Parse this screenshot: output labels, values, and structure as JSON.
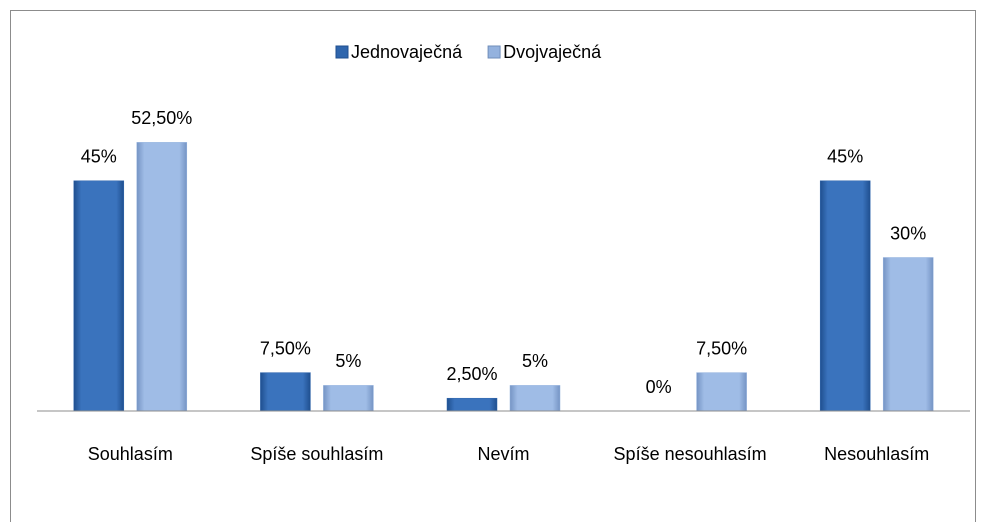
{
  "chart_data": {
    "type": "bar",
    "categories": [
      "Souhlasím",
      "Spíše souhlasím",
      "Nevím",
      "Spíše nesouhlasím",
      "Nesouhlasím"
    ],
    "series": [
      {
        "name": "Jednovaječná",
        "color": "#2f66ad",
        "values": [
          45,
          7.5,
          2.5,
          0,
          45
        ],
        "value_labels": [
          "45%",
          "7,50%",
          "2,50%",
          "0%",
          "45%"
        ]
      },
      {
        "name": "Dvojvaječná",
        "color": "#94b2de",
        "values": [
          52.5,
          5,
          5,
          7.5,
          30
        ],
        "value_labels": [
          "52,50%",
          "5%",
          "5%",
          "7,50%",
          "30%"
        ]
      }
    ],
    "ylim": [
      0,
      60
    ],
    "legend": "top"
  }
}
